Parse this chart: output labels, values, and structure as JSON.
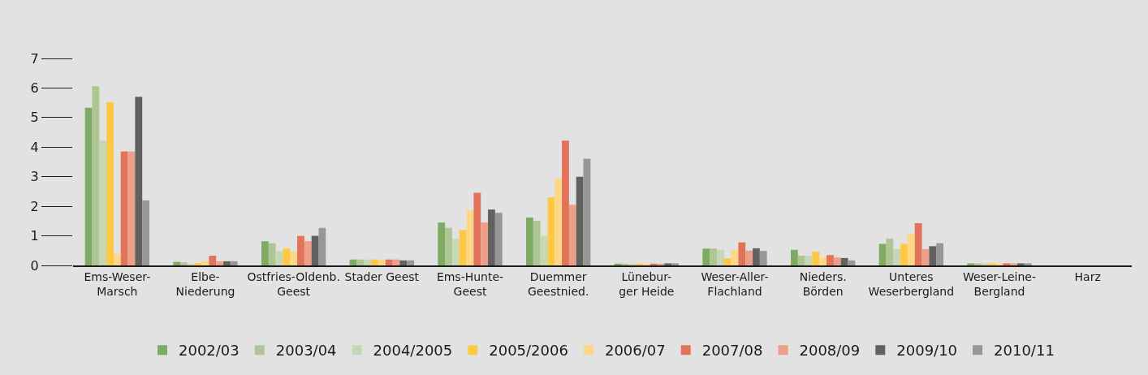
{
  "chart_data": {
    "type": "bar",
    "categories": [
      "Ems-Weser-\nMarsch",
      "Elbe-\nNiederung",
      "Ostfries-Oldenb.\nGeest",
      "Stader Geest",
      "Ems-Hunte-\nGeest",
      "Duemmer\nGeestnied.",
      "Lünebur-\nger Heide",
      "Weser-Aller-\nFlachland",
      "Nieders.\nBörden",
      "Unteres\nWeserbergland",
      "Weser-Leine-\nBergland",
      "Harz"
    ],
    "series": [
      {
        "name": "2002/03",
        "color": "#7faa63",
        "values": [
          5.33,
          0.12,
          0.82,
          0.2,
          1.45,
          1.62,
          0.06,
          0.57,
          0.53,
          0.73,
          0.07,
          0
        ]
      },
      {
        "name": "2003/04",
        "color": "#adc693",
        "values": [
          6.06,
          0.1,
          0.75,
          0.2,
          1.27,
          1.51,
          0.06,
          0.57,
          0.33,
          0.91,
          0.07,
          0
        ]
      },
      {
        "name": "2004/2005",
        "color": "#c7d6b5",
        "values": [
          4.22,
          0.05,
          0.48,
          0.2,
          0.9,
          1.0,
          0.06,
          0.53,
          0.33,
          0.55,
          0.07,
          0
        ]
      },
      {
        "name": "2005/2006",
        "color": "#fec843",
        "values": [
          5.52,
          0.08,
          0.57,
          0.2,
          1.2,
          2.3,
          0.06,
          0.24,
          0.46,
          0.73,
          0.07,
          0
        ]
      },
      {
        "name": "2006/07",
        "color": "#fdd785",
        "values": [
          0.38,
          0.15,
          0.48,
          0.2,
          1.87,
          2.93,
          0.06,
          0.52,
          0.27,
          1.07,
          0.07,
          0
        ]
      },
      {
        "name": "2007/08",
        "color": "#e3725a",
        "values": [
          3.86,
          0.33,
          1.0,
          0.2,
          2.46,
          4.22,
          0.06,
          0.78,
          0.35,
          1.43,
          0.07,
          0
        ]
      },
      {
        "name": "2008/09",
        "color": "#eda087",
        "values": [
          3.86,
          0.14,
          0.82,
          0.2,
          1.45,
          2.05,
          0.06,
          0.5,
          0.27,
          0.55,
          0.07,
          0
        ]
      },
      {
        "name": "2009/10",
        "color": "#616160",
        "values": [
          5.7,
          0.14,
          1.0,
          0.17,
          1.89,
          3.0,
          0.07,
          0.58,
          0.25,
          0.65,
          0.07,
          0
        ]
      },
      {
        "name": "2010/11",
        "color": "#979797",
        "values": [
          2.2,
          0.14,
          1.27,
          0.17,
          1.78,
          3.61,
          0.07,
          0.49,
          0.17,
          0.75,
          0.07,
          0
        ]
      }
    ],
    "ylim": [
      0,
      7
    ],
    "yticks": [
      0,
      1,
      2,
      3,
      4,
      5,
      6,
      7
    ],
    "grid": false,
    "legend": "bottom"
  }
}
